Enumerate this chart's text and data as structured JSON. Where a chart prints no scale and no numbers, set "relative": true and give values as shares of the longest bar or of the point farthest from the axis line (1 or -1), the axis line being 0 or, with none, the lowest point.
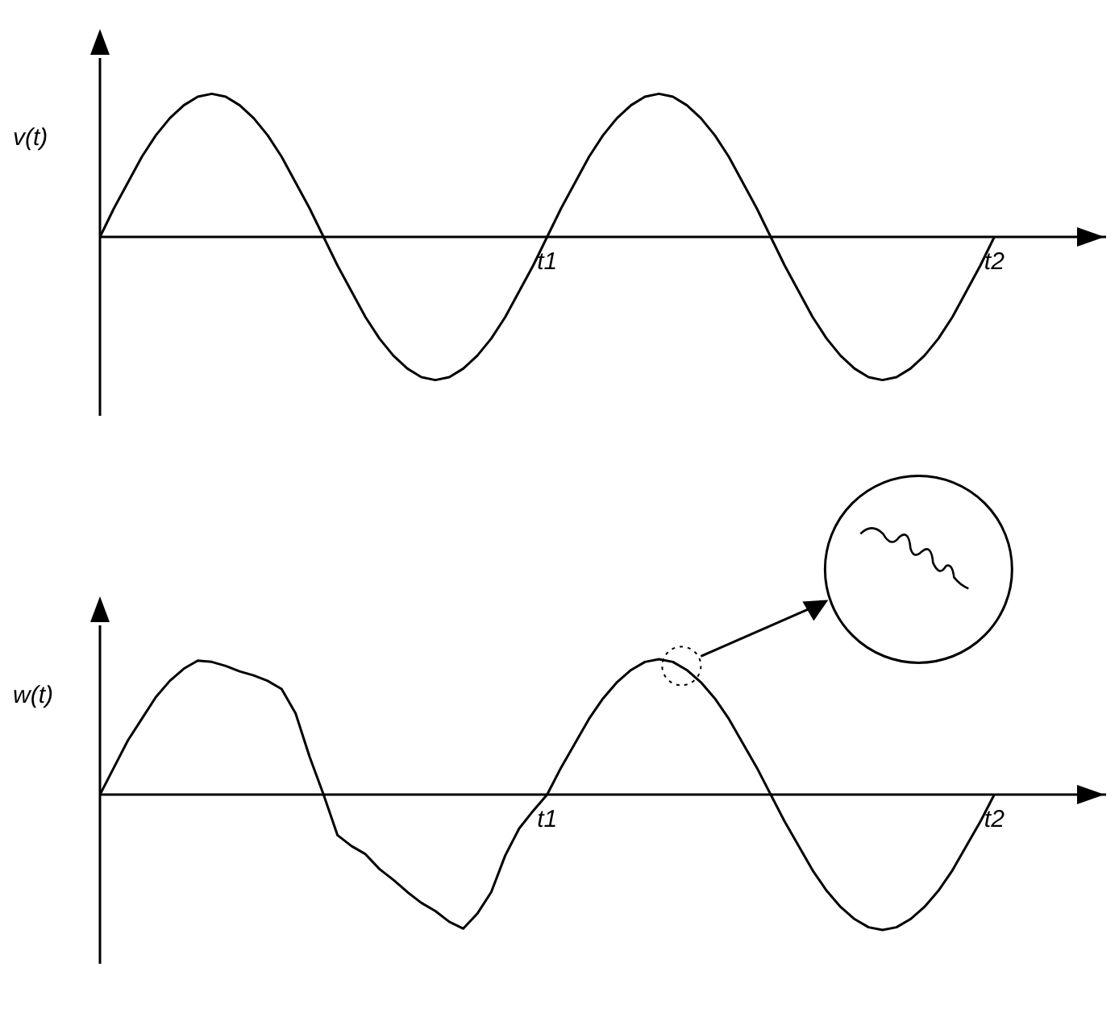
{
  "chart_data": [
    {
      "type": "line",
      "ylabel": "v(t)",
      "relative": true,
      "color": "#000000",
      "marker": "none",
      "line_style": "solid",
      "categories": [
        null,
        null,
        null,
        null,
        null,
        null,
        null,
        null,
        null,
        null,
        null,
        null,
        null,
        null,
        null,
        null,
        null,
        null,
        null,
        null,
        null,
        null,
        null,
        null,
        null,
        null,
        null,
        null,
        null,
        null,
        null,
        null,
        "t1",
        null,
        null,
        null,
        null,
        null,
        null,
        null,
        null,
        null,
        null,
        null,
        null,
        null,
        null,
        null,
        null,
        null,
        null,
        null,
        null,
        null,
        null,
        null,
        null,
        null,
        null,
        null,
        null,
        null,
        null,
        null,
        "t2",
        null,
        null,
        null,
        null,
        null,
        null,
        null,
        null
      ],
      "values": [
        0,
        0.2,
        0.38,
        0.56,
        0.71,
        0.83,
        0.92,
        0.98,
        1,
        0.98,
        0.92,
        0.83,
        0.71,
        0.56,
        0.38,
        0.2,
        0,
        -0.2,
        -0.38,
        -0.56,
        -0.71,
        -0.83,
        -0.92,
        -0.98,
        -1,
        -0.98,
        -0.92,
        -0.83,
        -0.71,
        -0.56,
        -0.38,
        -0.2,
        0,
        0.2,
        0.38,
        0.56,
        0.71,
        0.83,
        0.92,
        0.98,
        1,
        0.98,
        0.92,
        0.83,
        0.71,
        0.56,
        0.38,
        0.2,
        0,
        -0.2,
        -0.38,
        -0.56,
        -0.71,
        -0.83,
        -0.92,
        -0.98,
        -1,
        -0.98,
        -0.92,
        -0.83,
        -0.71,
        -0.56,
        -0.38,
        -0.2,
        0,
        null,
        null,
        null,
        null,
        null,
        null,
        null,
        null
      ]
    },
    {
      "type": "line",
      "ylabel": "w(t)",
      "relative": true,
      "color": "#000000",
      "marker": "none",
      "line_style": "solid",
      "categories": [
        null,
        null,
        null,
        null,
        null,
        null,
        null,
        null,
        null,
        null,
        null,
        null,
        null,
        null,
        null,
        null,
        null,
        null,
        null,
        null,
        null,
        null,
        null,
        null,
        null,
        null,
        null,
        null,
        null,
        null,
        null,
        null,
        "t1",
        null,
        null,
        null,
        null,
        null,
        null,
        null,
        null,
        null,
        null,
        null,
        null,
        null,
        null,
        null,
        null,
        null,
        null,
        null,
        null,
        null,
        null,
        null,
        null,
        null,
        null,
        null,
        null,
        null,
        null,
        null,
        "t2",
        null,
        null,
        null,
        null,
        null,
        null,
        null,
        null
      ],
      "values": [
        0,
        0.2,
        0.4,
        0.56,
        0.72,
        0.84,
        0.93,
        0.99,
        0.98,
        0.95,
        0.91,
        0.88,
        0.84,
        0.78,
        0.6,
        0.28,
        0,
        -0.3,
        -0.38,
        -0.44,
        -0.55,
        -0.63,
        -0.72,
        -0.8,
        -0.86,
        -0.94,
        -0.99,
        -0.88,
        -0.72,
        -0.45,
        -0.25,
        -0.12,
        0,
        0.2,
        0.38,
        0.56,
        0.71,
        0.83,
        0.92,
        0.98,
        1,
        0.98,
        0.92,
        0.83,
        0.71,
        0.56,
        0.38,
        0.2,
        0,
        -0.2,
        -0.38,
        -0.56,
        -0.71,
        -0.83,
        -0.92,
        -0.98,
        -1,
        -0.98,
        -0.92,
        -0.83,
        -0.71,
        -0.56,
        -0.38,
        -0.2,
        0,
        null,
        null,
        null,
        null,
        null,
        null,
        null,
        null
      ]
    }
  ]
}
